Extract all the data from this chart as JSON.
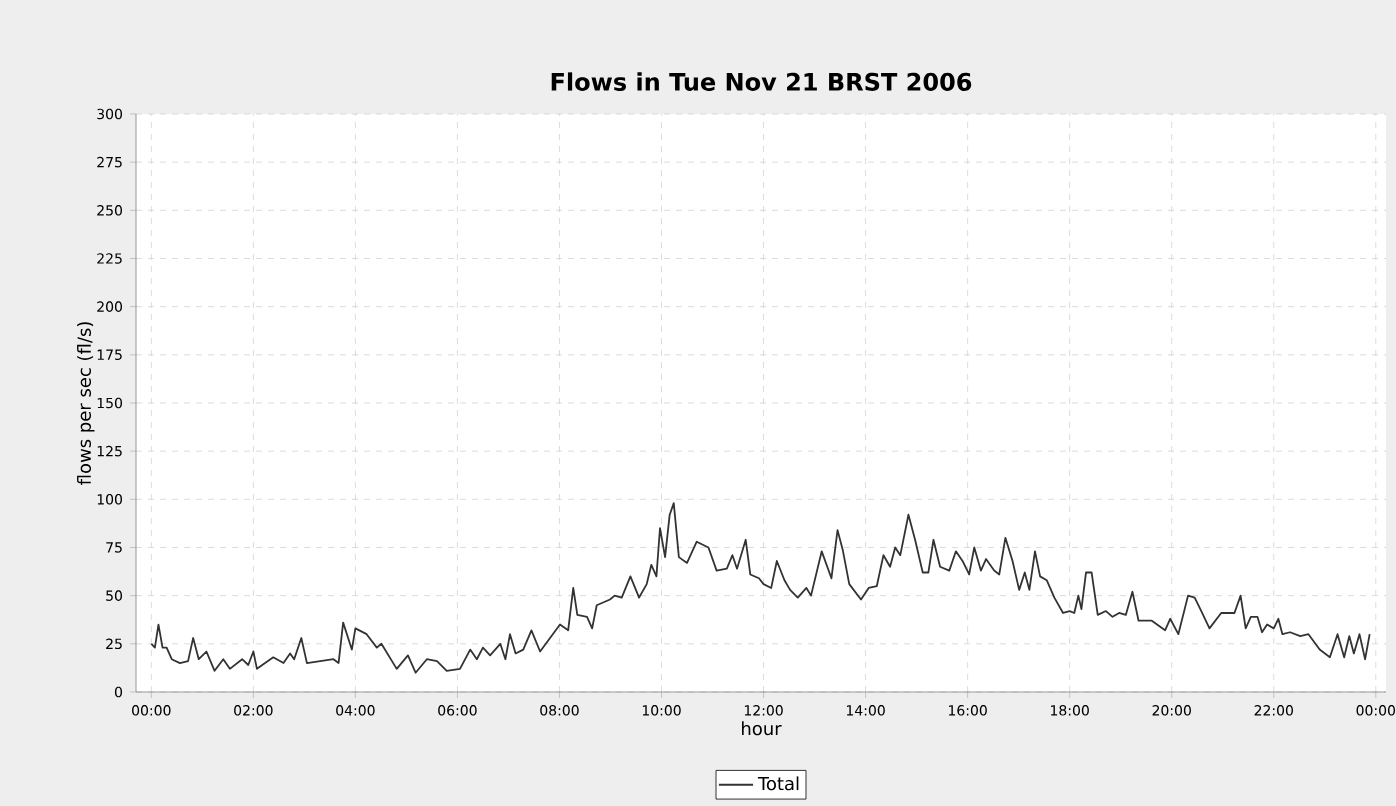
{
  "chart_data": {
    "type": "line",
    "title": "Flows in Tue Nov 21 BRST 2006",
    "xlabel": "hour",
    "ylabel": "flows per sec (fl/s)",
    "xlim": [
      -0.3,
      24.2
    ],
    "ylim": [
      0,
      300
    ],
    "xticks": [
      {
        "value": 0,
        "label": "00:00"
      },
      {
        "value": 2,
        "label": "02:00"
      },
      {
        "value": 4,
        "label": "04:00"
      },
      {
        "value": 6,
        "label": "06:00"
      },
      {
        "value": 8,
        "label": "08:00"
      },
      {
        "value": 10,
        "label": "10:00"
      },
      {
        "value": 12,
        "label": "12:00"
      },
      {
        "value": 14,
        "label": "14:00"
      },
      {
        "value": 16,
        "label": "16:00"
      },
      {
        "value": 18,
        "label": "18:00"
      },
      {
        "value": 20,
        "label": "20:00"
      },
      {
        "value": 22,
        "label": "22:00"
      },
      {
        "value": 24,
        "label": "00:00"
      }
    ],
    "yticks": [
      0,
      25,
      50,
      75,
      100,
      125,
      150,
      175,
      200,
      225,
      250,
      275,
      300
    ],
    "grid": true,
    "legend": "bottom",
    "line_style": "solid",
    "series": [
      {
        "name": "Total",
        "color": "#333333",
        "x": [
          0,
          0.07,
          0.14,
          0.22,
          0.3,
          0.4,
          0.56,
          0.72,
          0.82,
          0.93,
          1.08,
          1.24,
          1.41,
          1.54,
          1.78,
          1.9,
          2.0,
          2.07,
          2.39,
          2.59,
          2.72,
          2.8,
          2.94,
          3.05,
          3.57,
          3.67,
          3.76,
          3.93,
          4.0,
          4.22,
          4.42,
          4.51,
          4.81,
          5.03,
          5.18,
          5.4,
          5.6,
          5.79,
          6.05,
          6.25,
          6.38,
          6.5,
          6.64,
          6.84,
          6.94,
          7.03,
          7.14,
          7.29,
          7.45,
          7.62,
          8.01,
          8.17,
          8.27,
          8.35,
          8.54,
          8.64,
          8.73,
          8.99,
          9.08,
          9.22,
          9.39,
          9.56,
          9.71,
          9.8,
          9.9,
          9.97,
          10.07,
          10.16,
          10.24,
          10.34,
          10.5,
          10.69,
          10.92,
          11.08,
          11.28,
          11.39,
          11.48,
          11.65,
          11.74,
          11.91,
          12.0,
          12.15,
          12.26,
          12.41,
          12.52,
          12.67,
          12.84,
          12.93,
          13.14,
          13.33,
          13.45,
          13.55,
          13.68,
          13.91,
          14.06,
          14.22,
          14.35,
          14.48,
          14.58,
          14.68,
          14.84,
          14.97,
          15.12,
          15.23,
          15.33,
          15.46,
          15.64,
          15.77,
          15.9,
          16.03,
          16.13,
          16.26,
          16.36,
          16.52,
          16.62,
          16.74,
          16.88,
          17.01,
          17.12,
          17.21,
          17.32,
          17.42,
          17.55,
          17.7,
          17.87,
          18.0,
          18.09,
          18.17,
          18.23,
          18.32,
          18.43,
          18.55,
          18.71,
          18.84,
          18.97,
          19.1,
          19.23,
          19.35,
          19.61,
          19.87,
          19.97,
          20.13,
          20.32,
          20.45,
          20.58,
          20.74,
          20.97,
          21.23,
          21.35,
          21.45,
          21.55,
          21.68,
          21.77,
          21.87,
          22.0,
          22.09,
          22.17,
          22.32,
          22.52,
          22.68,
          22.9,
          23.1,
          23.25,
          23.38,
          23.48,
          23.57,
          23.68,
          23.79,
          23.88
        ],
        "values": [
          25,
          23,
          35,
          23,
          23,
          17,
          15,
          16,
          28,
          17,
          21,
          11,
          17,
          12,
          17,
          14,
          21,
          12,
          18,
          15,
          20,
          17,
          28,
          15,
          17,
          15,
          36,
          22,
          33,
          30,
          23,
          25,
          12,
          19,
          10,
          17,
          16,
          11,
          12,
          22,
          17,
          23,
          19,
          25,
          17,
          30,
          20,
          22,
          32,
          21,
          35,
          32,
          54,
          40,
          39,
          33,
          45,
          48,
          50,
          49,
          60,
          49,
          56,
          66,
          60,
          85,
          70,
          92,
          98,
          70,
          67,
          78,
          75,
          63,
          64,
          71,
          64,
          79,
          61,
          59,
          56,
          54,
          68,
          58,
          53,
          49,
          54,
          50,
          73,
          59,
          84,
          74,
          56,
          48,
          54,
          55,
          71,
          65,
          75,
          71,
          92,
          79,
          62,
          62,
          79,
          65,
          63,
          73,
          68,
          61,
          75,
          63,
          69,
          63,
          61,
          80,
          68,
          53,
          62,
          53,
          73,
          60,
          58,
          49,
          41,
          42,
          41,
          50,
          43,
          62,
          62,
          40,
          42,
          39,
          41,
          40,
          52,
          37,
          37,
          32,
          38,
          30,
          50,
          49,
          42,
          33,
          41,
          41,
          50,
          33,
          39,
          39,
          31,
          35,
          33,
          38,
          30,
          31,
          29,
          30,
          22,
          18,
          30,
          18,
          29,
          20,
          30,
          17,
          30
        ]
      }
    ]
  }
}
